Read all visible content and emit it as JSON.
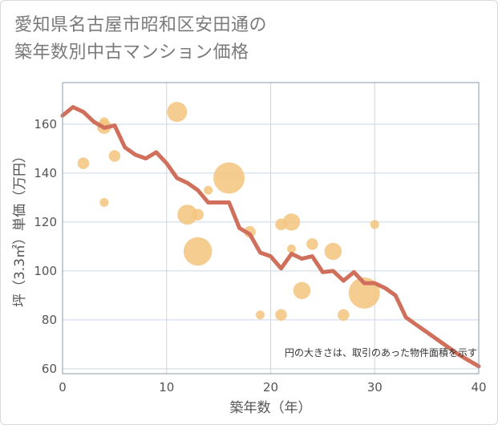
{
  "title_line1": "愛知県名古屋市昭和区安田通の",
  "title_line2": "築年数別中古マンション価格",
  "chart_data": {
    "type": "scatter",
    "xlabel": "築年数（年）",
    "ylabel": "坪（3.3㎡）単価（万円）",
    "xlim": [
      0,
      40
    ],
    "ylim": [
      58,
      177
    ],
    "xticks": [
      0,
      10,
      20,
      30,
      40
    ],
    "yticks": [
      60,
      80,
      100,
      120,
      140,
      160
    ],
    "grid": true,
    "annotation": "円の大きさは、取引のあった物件面積を示す",
    "colors": {
      "bubble": "#f3c47e",
      "line": "#d0705c",
      "grid": "#c9d7e6",
      "frame": "#8a98a8"
    },
    "scatter": [
      {
        "x": 2,
        "y": 144,
        "size": 3
      },
      {
        "x": 4,
        "y": 159,
        "size": 4
      },
      {
        "x": 4,
        "y": 161,
        "size": 2
      },
      {
        "x": 4,
        "y": 128,
        "size": 2
      },
      {
        "x": 5,
        "y": 147,
        "size": 3
      },
      {
        "x": 11,
        "y": 165,
        "size": 6
      },
      {
        "x": 12,
        "y": 123,
        "size": 6
      },
      {
        "x": 13,
        "y": 123,
        "size": 3
      },
      {
        "x": 13,
        "y": 108,
        "size": 9
      },
      {
        "x": 14,
        "y": 133,
        "size": 2
      },
      {
        "x": 16,
        "y": 138,
        "size": 10
      },
      {
        "x": 18,
        "y": 116,
        "size": 3
      },
      {
        "x": 19,
        "y": 82,
        "size": 2
      },
      {
        "x": 21,
        "y": 119,
        "size": 3
      },
      {
        "x": 21,
        "y": 82,
        "size": 3
      },
      {
        "x": 22,
        "y": 120,
        "size": 5
      },
      {
        "x": 22,
        "y": 109,
        "size": 2
      },
      {
        "x": 23,
        "y": 92,
        "size": 5
      },
      {
        "x": 24,
        "y": 111,
        "size": 3
      },
      {
        "x": 26,
        "y": 108,
        "size": 5
      },
      {
        "x": 27,
        "y": 82,
        "size": 3
      },
      {
        "x": 29,
        "y": 91,
        "size": 10
      },
      {
        "x": 30,
        "y": 119,
        "size": 2
      }
    ],
    "series": [
      {
        "x": [
          0,
          1,
          2,
          3,
          4,
          5,
          6,
          7,
          8,
          9,
          10,
          11,
          12,
          13,
          14,
          15,
          16,
          17,
          18,
          19,
          20,
          21,
          22,
          23,
          24,
          25,
          26,
          27,
          28,
          29,
          30,
          31,
          32,
          33,
          34,
          35,
          36,
          37,
          38,
          39,
          40
        ],
        "values": [
          163.5,
          167,
          165,
          161,
          158.5,
          159.5,
          150.5,
          147.5,
          146,
          148.5,
          144,
          138,
          136,
          133,
          128,
          128,
          128,
          117.5,
          115,
          107.5,
          106,
          101,
          107,
          105,
          106,
          99.5,
          100,
          96,
          99.5,
          95,
          95,
          93,
          90,
          81,
          78,
          75,
          72,
          69,
          66,
          63.5,
          61
        ]
      }
    ]
  }
}
